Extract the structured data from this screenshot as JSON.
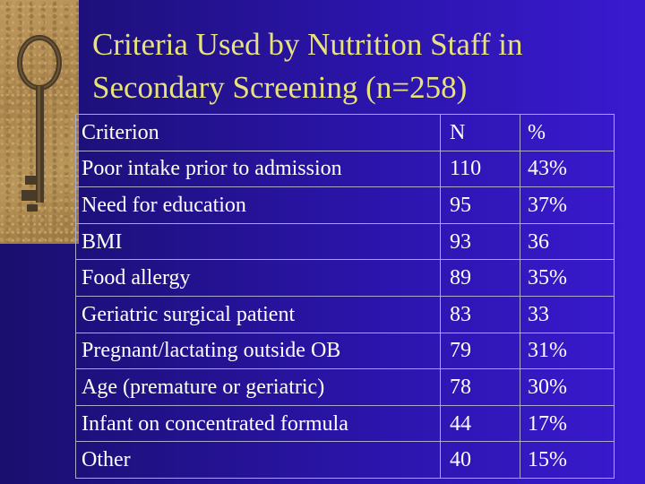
{
  "slide": {
    "title_line1": "Criteria Used by Nutrition Staff in",
    "title_line2": "Secondary Screening (n=258)",
    "title_color": "#e8e27a",
    "decoration": "key-image"
  },
  "table": {
    "header": {
      "criterion": "Criterion",
      "n": "N",
      "pct": "%"
    },
    "rows": [
      {
        "criterion": "Poor intake prior to admission",
        "n": "110",
        "pct": "43%"
      },
      {
        "criterion": "Need for education",
        "n": "95",
        "pct": "37%"
      },
      {
        "criterion": "BMI",
        "n": "93",
        "pct": "36"
      },
      {
        "criterion": "Food allergy",
        "n": "89",
        "pct": "35%"
      },
      {
        "criterion": "Geriatric surgical patient",
        "n": "83",
        "pct": "33"
      },
      {
        "criterion": "Pregnant/lactating outside OB",
        "n": "79",
        "pct": "31%"
      },
      {
        "criterion": "Age (premature or geriatric)",
        "n": "78",
        "pct": "30%"
      },
      {
        "criterion": "Infant on concentrated formula",
        "n": "44",
        "pct": "17%"
      },
      {
        "criterion": "Other",
        "n": "40",
        "pct": "15%"
      }
    ]
  }
}
